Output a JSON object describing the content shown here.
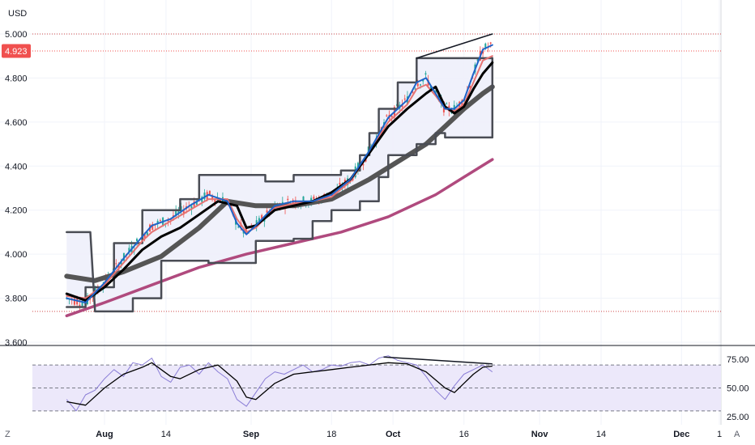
{
  "currency_label": "USD",
  "corner_left": "Z",
  "corner_right": "A",
  "colors": {
    "price_tag": "#f0504f",
    "ma_200": "#b04a7e",
    "ma_slow": "#555555",
    "ma_mid": "#000000",
    "ma_fast": "#1e63c8",
    "channel": "#4a4d55",
    "channel_fill": "#eeeffb",
    "rsi": "#8a7dd6",
    "rsi_band": "#ece8fa",
    "candle_up": "#26a69a",
    "candle_down": "#ef5350"
  },
  "price_tag": {
    "value": "4.923"
  },
  "chart_data": [
    {
      "type": "line",
      "title": "",
      "y_unit": "USD",
      "ylim": [
        3.6,
        5.0
      ],
      "yticks": [
        "5.000",
        "4.800",
        "4.600",
        "4.400",
        "4.200",
        "4.000",
        "3.800",
        "3.600"
      ],
      "x_labels": [
        {
          "label": "Aug",
          "bold": true,
          "day": 0
        },
        {
          "label": "14",
          "bold": false,
          "day": 13
        },
        {
          "label": "Sep",
          "bold": true,
          "day": 31
        },
        {
          "label": "18",
          "bold": false,
          "day": 48
        },
        {
          "label": "Oct",
          "bold": true,
          "day": 61
        },
        {
          "label": "16",
          "bold": false,
          "day": 76
        },
        {
          "label": "Nov",
          "bold": true,
          "day": 92
        },
        {
          "label": "14",
          "bold": false,
          "day": 105
        },
        {
          "label": "Dec",
          "bold": true,
          "day": 122
        },
        {
          "label": "1",
          "bold": false,
          "day": 130
        }
      ],
      "x_domain_days": [
        -8,
        132
      ],
      "last_price": 4.923,
      "horizontal_lines": [
        5.0,
        4.923,
        3.74
      ],
      "series": [
        {
          "key": "ma200",
          "points": [
            [
              -8,
              3.72
            ],
            [
              0,
              3.78
            ],
            [
              10,
              3.86
            ],
            [
              20,
              3.94
            ],
            [
              30,
              4.0
            ],
            [
              40,
              4.05
            ],
            [
              50,
              4.1
            ],
            [
              60,
              4.17
            ],
            [
              70,
              4.27
            ],
            [
              76,
              4.35
            ],
            [
              82,
              4.43
            ]
          ]
        },
        {
          "key": "ma_slow",
          "points": [
            [
              -8,
              3.9
            ],
            [
              -2,
              3.88
            ],
            [
              4,
              3.92
            ],
            [
              12,
              3.99
            ],
            [
              20,
              4.12
            ],
            [
              26,
              4.24
            ],
            [
              32,
              4.22
            ],
            [
              40,
              4.22
            ],
            [
              48,
              4.25
            ],
            [
              56,
              4.34
            ],
            [
              62,
              4.42
            ],
            [
              68,
              4.5
            ],
            [
              72,
              4.58
            ],
            [
              76,
              4.66
            ],
            [
              80,
              4.73
            ],
            [
              82,
              4.76
            ]
          ]
        },
        {
          "key": "ma_mid",
          "points": [
            [
              -8,
              3.82
            ],
            [
              -4,
              3.79
            ],
            [
              0,
              3.85
            ],
            [
              4,
              3.93
            ],
            [
              8,
              4.02
            ],
            [
              12,
              4.08
            ],
            [
              16,
              4.12
            ],
            [
              20,
              4.18
            ],
            [
              24,
              4.24
            ],
            [
              28,
              4.22
            ],
            [
              30,
              4.12
            ],
            [
              32,
              4.13
            ],
            [
              36,
              4.2
            ],
            [
              40,
              4.22
            ],
            [
              44,
              4.24
            ],
            [
              48,
              4.28
            ],
            [
              52,
              4.34
            ],
            [
              56,
              4.46
            ],
            [
              60,
              4.58
            ],
            [
              64,
              4.66
            ],
            [
              68,
              4.73
            ],
            [
              70,
              4.76
            ],
            [
              72,
              4.67
            ],
            [
              74,
              4.64
            ],
            [
              76,
              4.67
            ],
            [
              78,
              4.75
            ],
            [
              80,
              4.82
            ],
            [
              82,
              4.87
            ]
          ]
        },
        {
          "key": "ma_fast",
          "points": [
            [
              -8,
              3.8
            ],
            [
              -4,
              3.78
            ],
            [
              0,
              3.87
            ],
            [
              4,
              3.98
            ],
            [
              8,
              4.08
            ],
            [
              10,
              4.13
            ],
            [
              14,
              4.16
            ],
            [
              18,
              4.22
            ],
            [
              22,
              4.27
            ],
            [
              26,
              4.24
            ],
            [
              28,
              4.14
            ],
            [
              30,
              4.09
            ],
            [
              32,
              4.13
            ],
            [
              36,
              4.22
            ],
            [
              40,
              4.24
            ],
            [
              44,
              4.24
            ],
            [
              48,
              4.27
            ],
            [
              52,
              4.34
            ],
            [
              56,
              4.47
            ],
            [
              60,
              4.62
            ],
            [
              64,
              4.7
            ],
            [
              66,
              4.78
            ],
            [
              68,
              4.8
            ],
            [
              70,
              4.73
            ],
            [
              72,
              4.66
            ],
            [
              74,
              4.66
            ],
            [
              76,
              4.7
            ],
            [
              78,
              4.82
            ],
            [
              80,
              4.93
            ],
            [
              82,
              4.95
            ]
          ]
        },
        {
          "key": "ma_ema",
          "points": [
            [
              -8,
              3.81
            ],
            [
              -4,
              3.8
            ],
            [
              0,
              3.86
            ],
            [
              4,
              3.96
            ],
            [
              8,
              4.06
            ],
            [
              10,
              4.1
            ],
            [
              14,
              4.15
            ],
            [
              18,
              4.2
            ],
            [
              22,
              4.25
            ],
            [
              26,
              4.25
            ],
            [
              28,
              4.16
            ],
            [
              30,
              4.1
            ],
            [
              32,
              4.12
            ],
            [
              36,
              4.21
            ],
            [
              40,
              4.23
            ],
            [
              44,
              4.24
            ],
            [
              48,
              4.26
            ],
            [
              52,
              4.33
            ],
            [
              56,
              4.46
            ],
            [
              60,
              4.6
            ],
            [
              64,
              4.68
            ],
            [
              66,
              4.75
            ],
            [
              68,
              4.77
            ],
            [
              70,
              4.72
            ],
            [
              72,
              4.66
            ],
            [
              74,
              4.65
            ],
            [
              76,
              4.68
            ],
            [
              78,
              4.78
            ],
            [
              80,
              4.88
            ],
            [
              82,
              4.9
            ]
          ]
        },
        {
          "key": "channel_upper",
          "points": [
            [
              -8,
              3.76
            ],
            [
              -4,
              3.76
            ],
            [
              -4,
              3.85
            ],
            [
              2,
              3.85
            ],
            [
              2,
              4.05
            ],
            [
              8,
              4.05
            ],
            [
              8,
              4.2
            ],
            [
              16,
              4.2
            ],
            [
              16,
              4.25
            ],
            [
              20,
              4.25
            ],
            [
              20,
              4.36
            ],
            [
              34,
              4.36
            ],
            [
              34,
              4.33
            ],
            [
              40,
              4.33
            ],
            [
              40,
              4.36
            ],
            [
              50,
              4.36
            ],
            [
              50,
              4.38
            ],
            [
              54,
              4.38
            ],
            [
              54,
              4.45
            ],
            [
              56,
              4.45
            ],
            [
              56,
              4.55
            ],
            [
              58,
              4.55
            ],
            [
              58,
              4.66
            ],
            [
              62,
              4.66
            ],
            [
              62,
              4.78
            ],
            [
              66,
              4.78
            ],
            [
              66,
              4.89
            ],
            [
              82,
              4.89
            ]
          ]
        },
        {
          "key": "channel_lower",
          "points": [
            [
              -8,
              4.1
            ],
            [
              -3,
              4.1
            ],
            [
              -2,
              3.74
            ],
            [
              6,
              3.74
            ],
            [
              6,
              3.8
            ],
            [
              12,
              3.8
            ],
            [
              12,
              3.97
            ],
            [
              22,
              3.97
            ],
            [
              22,
              3.96
            ],
            [
              32,
              3.96
            ],
            [
              32,
              4.06
            ],
            [
              40,
              4.06
            ],
            [
              40,
              4.07
            ],
            [
              44,
              4.07
            ],
            [
              44,
              4.15
            ],
            [
              48,
              4.15
            ],
            [
              48,
              4.2
            ],
            [
              54,
              4.2
            ],
            [
              54,
              4.24
            ],
            [
              58,
              4.24
            ],
            [
              58,
              4.35
            ],
            [
              60,
              4.35
            ],
            [
              60,
              4.45
            ],
            [
              66,
              4.45
            ],
            [
              66,
              4.5
            ],
            [
              70,
              4.5
            ],
            [
              70,
              4.55
            ],
            [
              72,
              4.55
            ],
            [
              72,
              4.53
            ],
            [
              82,
              4.53
            ],
            [
              82,
              4.89
            ]
          ]
        },
        {
          "key": "trendline",
          "points": [
            [
              66,
              4.89
            ],
            [
              82,
              5.0
            ]
          ]
        }
      ]
    },
    {
      "type": "line",
      "title": "",
      "ylim": [
        20,
        80
      ],
      "yticks": [
        "75.00",
        "50.00",
        "25.00"
      ],
      "bands": [
        70,
        30
      ],
      "midline": 50,
      "series": [
        {
          "key": "rsi",
          "points": [
            [
              -8,
              40
            ],
            [
              -6,
              30
            ],
            [
              -4,
              44
            ],
            [
              -2,
              48
            ],
            [
              0,
              58
            ],
            [
              2,
              66
            ],
            [
              4,
              60
            ],
            [
              6,
              72
            ],
            [
              8,
              70
            ],
            [
              10,
              76
            ],
            [
              12,
              60
            ],
            [
              14,
              55
            ],
            [
              16,
              68
            ],
            [
              18,
              70
            ],
            [
              20,
              62
            ],
            [
              22,
              72
            ],
            [
              24,
              64
            ],
            [
              26,
              58
            ],
            [
              28,
              40
            ],
            [
              30,
              34
            ],
            [
              32,
              46
            ],
            [
              34,
              58
            ],
            [
              36,
              64
            ],
            [
              38,
              62
            ],
            [
              40,
              66
            ],
            [
              42,
              70
            ],
            [
              44,
              64
            ],
            [
              46,
              66
            ],
            [
              48,
              70
            ],
            [
              50,
              69
            ],
            [
              52,
              72
            ],
            [
              54,
              73
            ],
            [
              56,
              70
            ],
            [
              58,
              76
            ],
            [
              60,
              78
            ],
            [
              62,
              74
            ],
            [
              64,
              72
            ],
            [
              66,
              70
            ],
            [
              68,
              60
            ],
            [
              70,
              48
            ],
            [
              72,
              40
            ],
            [
              74,
              52
            ],
            [
              76,
              62
            ],
            [
              78,
              66
            ],
            [
              80,
              70
            ],
            [
              82,
              64
            ]
          ]
        },
        {
          "key": "rsi_ma",
          "points": [
            [
              -8,
              38
            ],
            [
              -4,
              35
            ],
            [
              0,
              50
            ],
            [
              4,
              62
            ],
            [
              8,
              68
            ],
            [
              10,
              72
            ],
            [
              14,
              60
            ],
            [
              16,
              58
            ],
            [
              20,
              66
            ],
            [
              24,
              70
            ],
            [
              28,
              56
            ],
            [
              30,
              42
            ],
            [
              32,
              40
            ],
            [
              36,
              54
            ],
            [
              40,
              62
            ],
            [
              44,
              64
            ],
            [
              48,
              66
            ],
            [
              52,
              68
            ],
            [
              56,
              70
            ],
            [
              60,
              72
            ],
            [
              64,
              71
            ],
            [
              68,
              64
            ],
            [
              72,
              50
            ],
            [
              74,
              46
            ],
            [
              76,
              54
            ],
            [
              78,
              62
            ],
            [
              80,
              68
            ],
            [
              82,
              69
            ]
          ]
        },
        {
          "key": "rsi_trendline",
          "points": [
            [
              59,
              77
            ],
            [
              82,
              71
            ]
          ]
        }
      ]
    }
  ]
}
